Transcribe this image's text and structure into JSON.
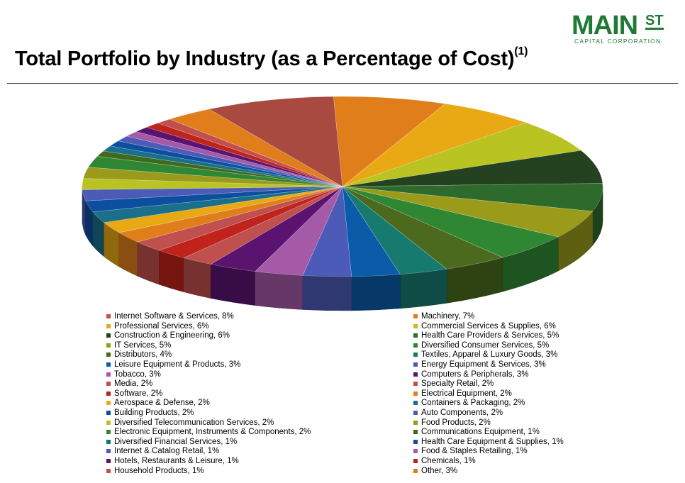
{
  "title": "Total Portfolio by Industry (as a Percentage of Cost)",
  "title_footnote": "(1)",
  "logo": {
    "word": "MAIN",
    "superscript": "ST",
    "subtitle": "CAPITAL CORPORATION",
    "color": "#1f7a35"
  },
  "chart_data": {
    "type": "pie",
    "style": "3d-exploded",
    "title": "Total Portfolio by Industry (as a Percentage of Cost)",
    "unit": "%",
    "legend_columns": 2,
    "slices": [
      {
        "name": "Machinery",
        "value": 7,
        "color": "#e07e1b"
      },
      {
        "name": "Professional Services",
        "value": 6,
        "color": "#e9a914"
      },
      {
        "name": "Commercial Services & Supplies",
        "value": 6,
        "color": "#b9c321"
      },
      {
        "name": "Construction & Engineering",
        "value": 6,
        "color": "#24421f"
      },
      {
        "name": "Health Care Providers & Services",
        "value": 5,
        "color": "#2e6a2b"
      },
      {
        "name": "IT Services",
        "value": 5,
        "color": "#9a9a1b"
      },
      {
        "name": "Diversified Consumer Services",
        "value": 5,
        "color": "#2f8733"
      },
      {
        "name": "Distributors",
        "value": 4,
        "color": "#4b6a1d"
      },
      {
        "name": "Textiles, Apparel & Luxury Goods",
        "value": 3,
        "color": "#167a6f"
      },
      {
        "name": "Leisure Equipment & Products",
        "value": 3,
        "color": "#0a5ba8"
      },
      {
        "name": "Energy Equipment & Services",
        "value": 3,
        "color": "#4b5bb7"
      },
      {
        "name": "Tobacco",
        "value": 3,
        "color": "#a55aa8"
      },
      {
        "name": "Computers & Peripherals",
        "value": 3,
        "color": "#5a1470"
      },
      {
        "name": "Media",
        "value": 2,
        "color": "#c0504d"
      },
      {
        "name": "Software",
        "value": 2,
        "color": "#c0221c"
      },
      {
        "name": "Specialty Retail",
        "value": 2,
        "color": "#c0504d"
      },
      {
        "name": "Electrical Equipment",
        "value": 2,
        "color": "#e07e1b"
      },
      {
        "name": "Aerospace & Defense",
        "value": 2,
        "color": "#e9a914"
      },
      {
        "name": "Containers & Packaging",
        "value": 2,
        "color": "#1a6f8a"
      },
      {
        "name": "Building Products",
        "value": 2,
        "color": "#0b4f9e"
      },
      {
        "name": "Auto Components",
        "value": 2,
        "color": "#4b5bb7"
      },
      {
        "name": "Diversified Telecommunication Services",
        "value": 2,
        "color": "#b9c321"
      },
      {
        "name": "Food Products",
        "value": 2,
        "color": "#9a9a1b"
      },
      {
        "name": "Electronic Equipment, Instruments & Components",
        "value": 2,
        "color": "#2f8733"
      },
      {
        "name": "Communications Equipment",
        "value": 1,
        "color": "#3f6a1d"
      },
      {
        "name": "Diversified Financial Services",
        "value": 1,
        "color": "#1a6f8a"
      },
      {
        "name": "Health Care Equipment & Supplies",
        "value": 1,
        "color": "#0b4f9e"
      },
      {
        "name": "Internet & Catalog Retail",
        "value": 1,
        "color": "#4b5bb7"
      },
      {
        "name": "Food & Staples Retailing",
        "value": 1,
        "color": "#a55aa8"
      },
      {
        "name": "Hotels, Restaurants & Leisure",
        "value": 1,
        "color": "#5a1470"
      },
      {
        "name": "Chemicals",
        "value": 1,
        "color": "#c0221c"
      },
      {
        "name": "Household Products",
        "value": 1,
        "color": "#c0504d"
      },
      {
        "name": "Other",
        "value": 3,
        "color": "#e07e1b"
      },
      {
        "name": "Internet Software & Services",
        "value": 8,
        "color": "#a84a3f"
      }
    ],
    "legend": [
      {
        "label": "Internet Software & Services, 8%",
        "color": "#c0504d"
      },
      {
        "label": "Machinery, 7%",
        "color": "#e07e1b"
      },
      {
        "label": "Professional Services, 6%",
        "color": "#e9a914"
      },
      {
        "label": "Commercial Services & Supplies, 6%",
        "color": "#b9c321"
      },
      {
        "label": "Construction & Engineering, 6%",
        "color": "#24421f"
      },
      {
        "label": "Health Care Providers & Services, 5%",
        "color": "#2e6a2b"
      },
      {
        "label": "IT Services, 5%",
        "color": "#9a9a1b"
      },
      {
        "label": "Diversified Consumer Services, 5%",
        "color": "#2f8733"
      },
      {
        "label": "Distributors, 4%",
        "color": "#4b6a1d"
      },
      {
        "label": "Textiles, Apparel & Luxury Goods, 3%",
        "color": "#167a6f"
      },
      {
        "label": "Leisure Equipment & Products, 3%",
        "color": "#0a5ba8"
      },
      {
        "label": "Energy Equipment & Services, 3%",
        "color": "#4b5bb7"
      },
      {
        "label": "Tobacco, 3%",
        "color": "#a55aa8"
      },
      {
        "label": "Computers & Peripherals, 3%",
        "color": "#5a1470"
      },
      {
        "label": "Media, 2%",
        "color": "#c0504d"
      },
      {
        "label": "Specialty Retail, 2%",
        "color": "#c0504d"
      },
      {
        "label": "Software, 2%",
        "color": "#c0221c"
      },
      {
        "label": "Electrical Equipment, 2%",
        "color": "#e07e1b"
      },
      {
        "label": "Aerospace & Defense, 2%",
        "color": "#e9a914"
      },
      {
        "label": "Containers & Packaging, 2%",
        "color": "#1a6f8a"
      },
      {
        "label": "Building Products, 2%",
        "color": "#0b4f9e"
      },
      {
        "label": "Auto Components, 2%",
        "color": "#4b5bb7"
      },
      {
        "label": "Diversified Telecommunication Services, 2%",
        "color": "#b9c321"
      },
      {
        "label": "Food Products, 2%",
        "color": "#9a9a1b"
      },
      {
        "label": "Electronic Equipment, Instruments & Components, 2%",
        "color": "#2f8733"
      },
      {
        "label": "Communications Equipment, 1%",
        "color": "#3f6a1d"
      },
      {
        "label": "Diversified Financial Services, 1%",
        "color": "#1a6f8a"
      },
      {
        "label": "Health Care Equipment & Supplies, 1%",
        "color": "#0b4f9e"
      },
      {
        "label": "Internet & Catalog Retail, 1%",
        "color": "#4b5bb7"
      },
      {
        "label": "Food & Staples Retailing, 1%",
        "color": "#a55aa8"
      },
      {
        "label": "Hotels, Restaurants & Leisure, 1%",
        "color": "#5a1470"
      },
      {
        "label": "Chemicals, 1%",
        "color": "#c0221c"
      },
      {
        "label": "Household Products, 1%",
        "color": "#c0504d"
      },
      {
        "label": "Other, 3%",
        "color": "#e07e1b"
      }
    ]
  }
}
